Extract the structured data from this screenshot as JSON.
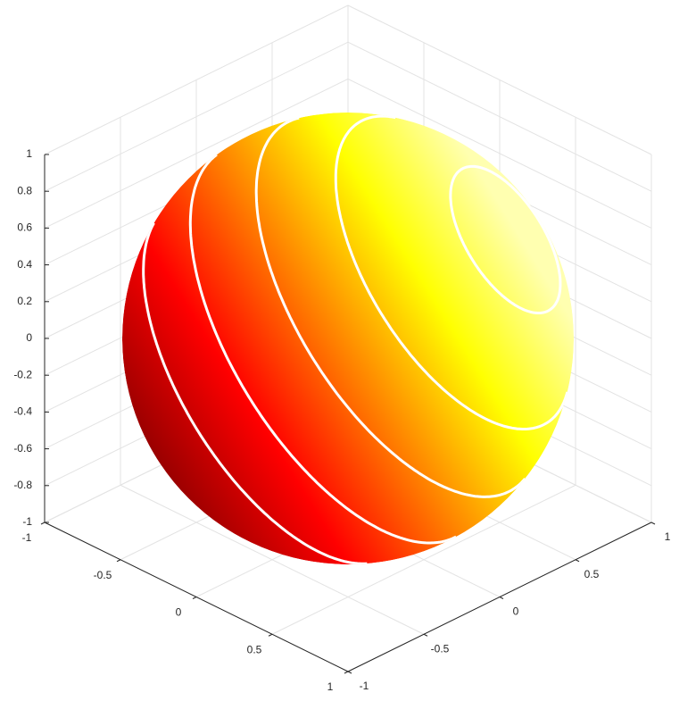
{
  "chart_data": {
    "type": "surface",
    "shape": "sphere",
    "xlim": [
      -1,
      1
    ],
    "ylim": [
      -1,
      1
    ],
    "zlim": [
      -1,
      1
    ],
    "xticks": [
      -1,
      -0.5,
      0,
      0.5,
      1
    ],
    "yticks": [
      -1,
      -0.5,
      0,
      0.5,
      1
    ],
    "zticks": [
      -1,
      -0.8,
      -0.6,
      -0.4,
      -0.2,
      0,
      0.2,
      0.4,
      0.6,
      0.8,
      1
    ],
    "grid": true,
    "colormap": [
      "#9a0000",
      "#ff0000",
      "#ff8000",
      "#ffff00",
      "#ffffb0"
    ],
    "contour_levels": [
      -0.4,
      -0.05,
      0.3,
      0.62,
      0.93
    ],
    "contour_color": "#ffffff"
  }
}
